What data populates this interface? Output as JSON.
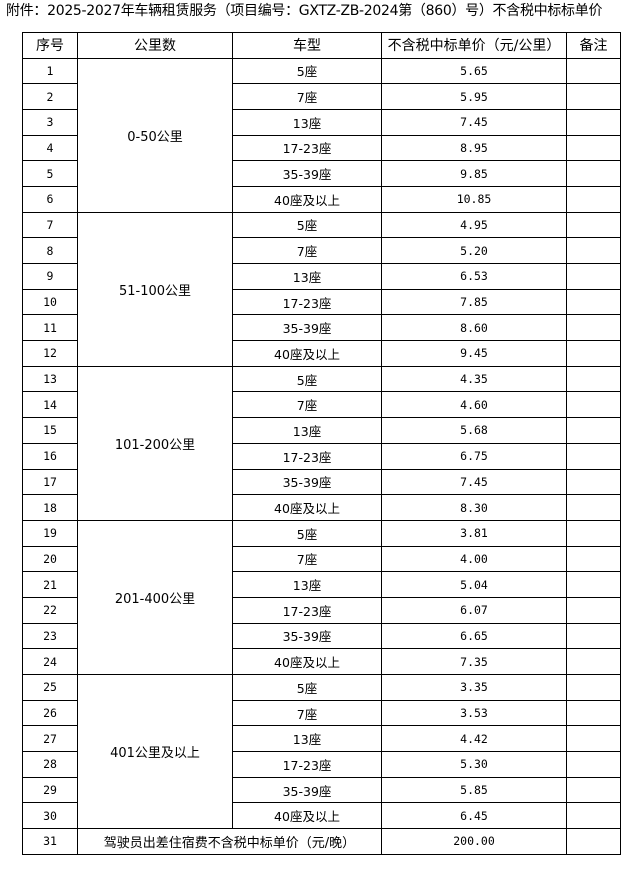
{
  "title": "附件：2025-2027年车辆租赁服务（项目编号：GXTZ-ZB-2024第（860）号）不含税中标标单价",
  "headers": [
    "序号",
    "公里数",
    "车型",
    "不含税中标单价（元/公里）",
    "备注"
  ],
  "groups": [
    {
      "range": "0-50公里",
      "rows": [
        {
          "no": "1",
          "type": "5座",
          "price": "5.65"
        },
        {
          "no": "2",
          "type": "7座",
          "price": "5.95"
        },
        {
          "no": "3",
          "type": "13座",
          "price": "7.45"
        },
        {
          "no": "4",
          "type": "17-23座",
          "price": "8.95"
        },
        {
          "no": "5",
          "type": "35-39座",
          "price": "9.85"
        },
        {
          "no": "6",
          "type": "40座及以上",
          "price": "10.85"
        }
      ]
    },
    {
      "range": "51-100公里",
      "rows": [
        {
          "no": "7",
          "type": "5座",
          "price": "4.95"
        },
        {
          "no": "8",
          "type": "7座",
          "price": "5.20"
        },
        {
          "no": "9",
          "type": "13座",
          "price": "6.53"
        },
        {
          "no": "10",
          "type": "17-23座",
          "price": "7.85"
        },
        {
          "no": "11",
          "type": "35-39座",
          "price": "8.60"
        },
        {
          "no": "12",
          "type": "40座及以上",
          "price": "9.45"
        }
      ]
    },
    {
      "range": "101-200公里",
      "rows": [
        {
          "no": "13",
          "type": "5座",
          "price": "4.35"
        },
        {
          "no": "14",
          "type": "7座",
          "price": "4.60"
        },
        {
          "no": "15",
          "type": "13座",
          "price": "5.68"
        },
        {
          "no": "16",
          "type": "17-23座",
          "price": "6.75"
        },
        {
          "no": "17",
          "type": "35-39座",
          "price": "7.45"
        },
        {
          "no": "18",
          "type": "40座及以上",
          "price": "8.30"
        }
      ]
    },
    {
      "range": "201-400公里",
      "rows": [
        {
          "no": "19",
          "type": "5座",
          "price": "3.81"
        },
        {
          "no": "20",
          "type": "7座",
          "price": "4.00"
        },
        {
          "no": "21",
          "type": "13座",
          "price": "5.04"
        },
        {
          "no": "22",
          "type": "17-23座",
          "price": "6.07"
        },
        {
          "no": "23",
          "type": "35-39座",
          "price": "6.65"
        },
        {
          "no": "24",
          "type": "40座及以上",
          "price": "7.35"
        }
      ]
    },
    {
      "range": "401公里及以上",
      "rows": [
        {
          "no": "25",
          "type": "5座",
          "price": "3.35"
        },
        {
          "no": "26",
          "type": "7座",
          "price": "3.53"
        },
        {
          "no": "27",
          "type": "13座",
          "price": "4.42"
        },
        {
          "no": "28",
          "type": "17-23座",
          "price": "5.30"
        },
        {
          "no": "29",
          "type": "35-39座",
          "price": "5.85"
        },
        {
          "no": "30",
          "type": "40座及以上",
          "price": "6.45"
        }
      ]
    }
  ],
  "footer": {
    "no": "31",
    "label": "驾驶员出差住宿费不含税中标单价（元/晚）",
    "price": "200.00"
  }
}
